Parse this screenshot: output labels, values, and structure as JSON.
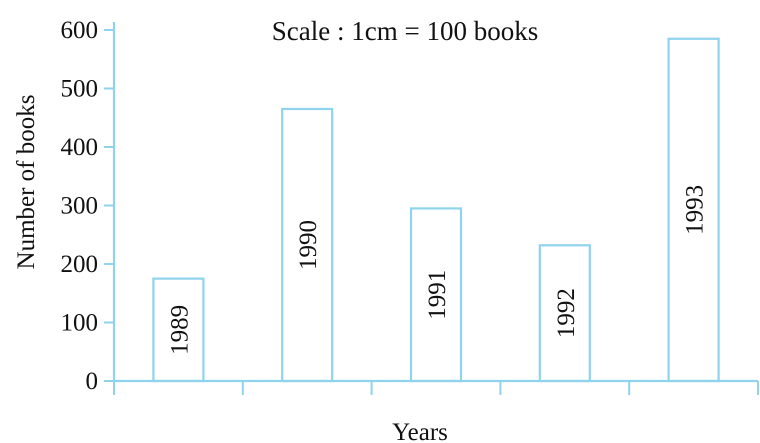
{
  "chart_data": {
    "type": "bar",
    "title": "Scale : 1cm = 100 books",
    "xlabel": "Years",
    "ylabel": "Number of books",
    "categories": [
      "1989",
      "1990",
      "1991",
      "1992",
      "1993"
    ],
    "values": [
      175,
      465,
      295,
      232,
      585
    ],
    "ylim": [
      0,
      600
    ],
    "yticks": [
      "0",
      "100",
      "200",
      "300",
      "400",
      "500",
      "600"
    ],
    "grid": false,
    "legend": "none",
    "colors": {
      "bar_outline": "#8fd3ec",
      "text": "#111111"
    }
  }
}
